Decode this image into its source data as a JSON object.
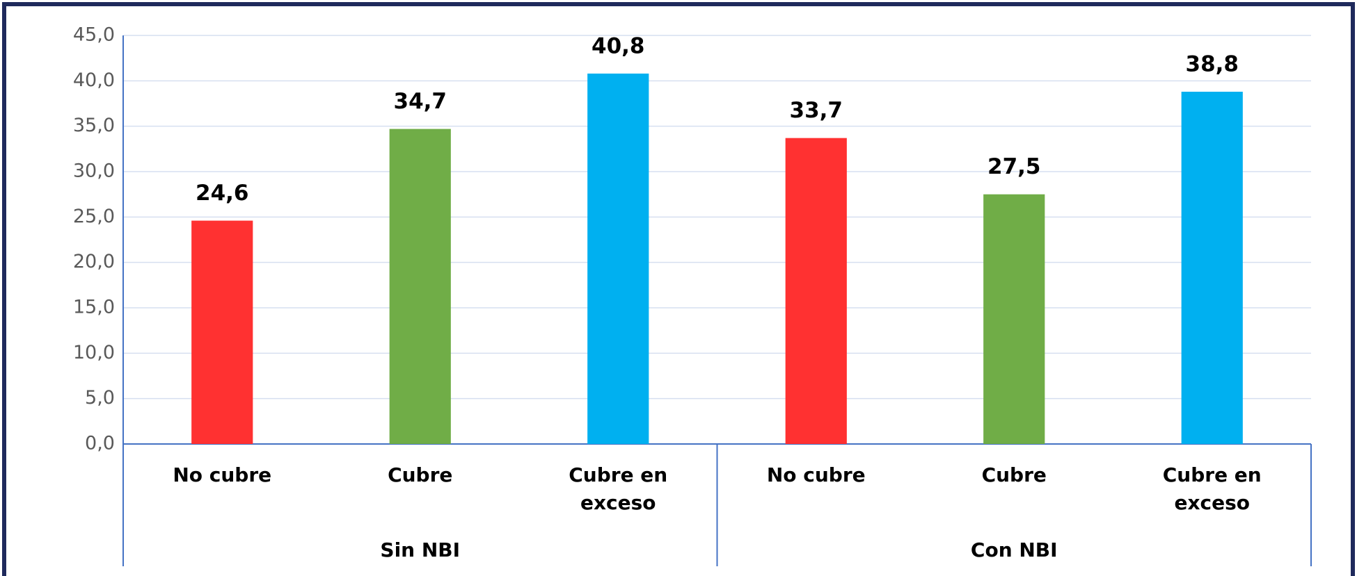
{
  "chart_data": {
    "type": "bar",
    "categories": [
      "No cubre",
      "Cubre",
      "Cubre en exceso",
      "No cubre",
      "Cubre",
      "Cubre en exceso"
    ],
    "groups": [
      "Sin NBI",
      "Con NBI"
    ],
    "values": [
      24.6,
      34.7,
      40.8,
      33.7,
      27.5,
      38.8
    ],
    "value_labels": [
      "24,6",
      "34,7",
      "40,8",
      "33,7",
      "27,5",
      "38,8"
    ],
    "colors": [
      "#ff3131",
      "#70ad47",
      "#00b0f0",
      "#ff3131",
      "#70ad47",
      "#00b0f0"
    ],
    "ylim": [
      0,
      45
    ],
    "yticks": [
      {
        "value": 0,
        "label": "0,0"
      },
      {
        "value": 5,
        "label": "5,0"
      },
      {
        "value": 10,
        "label": "10,0"
      },
      {
        "value": 15,
        "label": "15,0"
      },
      {
        "value": 20,
        "label": "20,0"
      },
      {
        "value": 25,
        "label": "25,0"
      },
      {
        "value": 30,
        "label": "30,0"
      },
      {
        "value": 35,
        "label": "35,0"
      },
      {
        "value": 40,
        "label": "40,0"
      },
      {
        "value": 45,
        "label": "45,0"
      }
    ],
    "grid": true
  }
}
